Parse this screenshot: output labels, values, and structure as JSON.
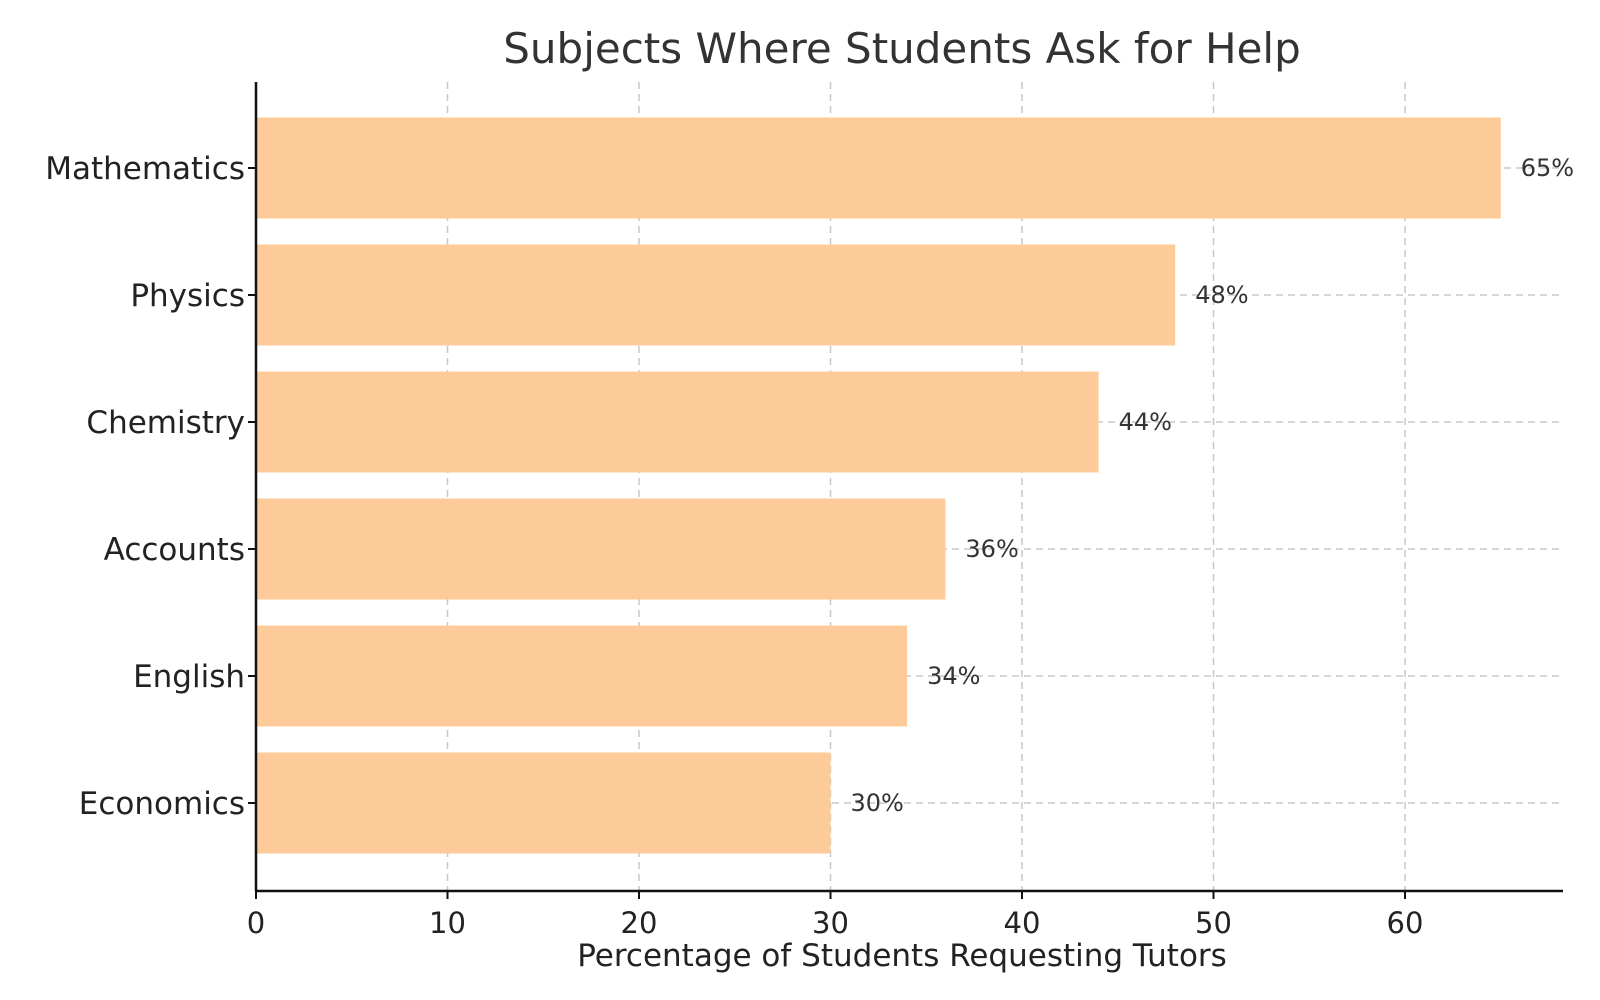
{
  "chart_data": {
    "type": "bar",
    "orientation": "horizontal",
    "title": "Subjects Where Students Ask for Help",
    "xlabel": "Percentage of Students Requesting Tutors",
    "ylabel": "",
    "categories": [
      "Mathematics",
      "Physics",
      "Chemistry",
      "Accounts",
      "English",
      "Economics"
    ],
    "values": [
      65,
      48,
      44,
      36,
      34,
      30
    ],
    "value_labels": [
      "65%",
      "48%",
      "44%",
      "36%",
      "34%",
      "30%"
    ],
    "xlim": [
      0,
      68.25
    ],
    "xticks": [
      0,
      10,
      20,
      30,
      40,
      50,
      60
    ],
    "xtick_labels": [
      "0",
      "10",
      "20",
      "30",
      "40",
      "50",
      "60"
    ],
    "grid": true,
    "grid_style": "dashed",
    "bar_color": "#FDCB9A"
  }
}
